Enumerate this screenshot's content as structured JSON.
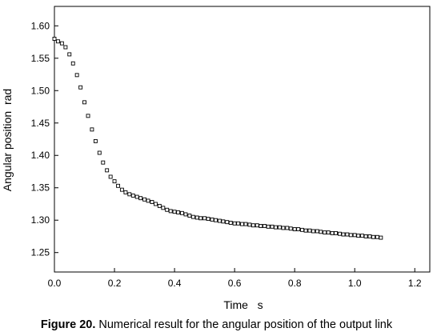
{
  "chart_data": {
    "type": "scatter",
    "title": "",
    "xlabel": "Time   s",
    "ylabel": "Angular position  rad",
    "xlim": [
      0.0,
      1.25
    ],
    "ylim": [
      1.22,
      1.63
    ],
    "xticks": [
      "0.0",
      "0.2",
      "0.4",
      "0.6",
      "0.8",
      "1.0",
      "1.2"
    ],
    "xtick_values": [
      0.0,
      0.2,
      0.4,
      0.6,
      0.8,
      1.0,
      1.2
    ],
    "yticks": [
      "1.25",
      "1.30",
      "1.35",
      "1.40",
      "1.45",
      "1.50",
      "1.55",
      "1.60"
    ],
    "ytick_values": [
      1.25,
      1.3,
      1.35,
      1.4,
      1.45,
      1.5,
      1.55,
      1.6
    ],
    "grid": false,
    "marker": "open-square",
    "series": [
      {
        "points": [
          [
            0.0,
            1.58
          ],
          [
            0.012,
            1.576
          ],
          [
            0.025,
            1.573
          ],
          [
            0.037,
            1.567
          ],
          [
            0.05,
            1.556
          ],
          [
            0.062,
            1.542
          ],
          [
            0.075,
            1.524
          ],
          [
            0.087,
            1.505
          ],
          [
            0.1,
            1.482
          ],
          [
            0.112,
            1.461
          ],
          [
            0.125,
            1.44
          ],
          [
            0.137,
            1.422
          ],
          [
            0.15,
            1.404
          ],
          [
            0.162,
            1.389
          ],
          [
            0.175,
            1.377
          ],
          [
            0.187,
            1.367
          ],
          [
            0.2,
            1.36
          ],
          [
            0.212,
            1.353
          ],
          [
            0.225,
            1.347
          ],
          [
            0.237,
            1.343
          ],
          [
            0.25,
            1.34
          ],
          [
            0.262,
            1.338
          ],
          [
            0.275,
            1.336
          ],
          [
            0.287,
            1.334
          ],
          [
            0.3,
            1.332
          ],
          [
            0.312,
            1.33
          ],
          [
            0.325,
            1.328
          ],
          [
            0.337,
            1.325
          ],
          [
            0.35,
            1.322
          ],
          [
            0.362,
            1.319
          ],
          [
            0.375,
            1.316
          ],
          [
            0.387,
            1.314
          ],
          [
            0.4,
            1.313
          ],
          [
            0.412,
            1.312
          ],
          [
            0.425,
            1.311
          ],
          [
            0.437,
            1.309
          ],
          [
            0.45,
            1.307
          ],
          [
            0.462,
            1.305
          ],
          [
            0.475,
            1.304
          ],
          [
            0.487,
            1.303
          ],
          [
            0.5,
            1.303
          ],
          [
            0.512,
            1.302
          ],
          [
            0.525,
            1.301
          ],
          [
            0.537,
            1.3
          ],
          [
            0.55,
            1.299
          ],
          [
            0.562,
            1.298
          ],
          [
            0.575,
            1.297
          ],
          [
            0.587,
            1.296
          ],
          [
            0.6,
            1.295
          ],
          [
            0.612,
            1.295
          ],
          [
            0.625,
            1.294
          ],
          [
            0.637,
            1.294
          ],
          [
            0.65,
            1.293
          ],
          [
            0.662,
            1.292
          ],
          [
            0.675,
            1.292
          ],
          [
            0.687,
            1.291
          ],
          [
            0.7,
            1.291
          ],
          [
            0.712,
            1.29
          ],
          [
            0.725,
            1.29
          ],
          [
            0.737,
            1.289
          ],
          [
            0.75,
            1.289
          ],
          [
            0.762,
            1.288
          ],
          [
            0.775,
            1.288
          ],
          [
            0.787,
            1.287
          ],
          [
            0.8,
            1.286
          ],
          [
            0.812,
            1.286
          ],
          [
            0.825,
            1.285
          ],
          [
            0.837,
            1.284
          ],
          [
            0.85,
            1.284
          ],
          [
            0.862,
            1.283
          ],
          [
            0.875,
            1.283
          ],
          [
            0.887,
            1.282
          ],
          [
            0.9,
            1.281
          ],
          [
            0.912,
            1.281
          ],
          [
            0.925,
            1.28
          ],
          [
            0.937,
            1.28
          ],
          [
            0.95,
            1.279
          ],
          [
            0.962,
            1.278
          ],
          [
            0.975,
            1.278
          ],
          [
            0.987,
            1.277
          ],
          [
            1.0,
            1.277
          ],
          [
            1.012,
            1.276
          ],
          [
            1.025,
            1.276
          ],
          [
            1.037,
            1.275
          ],
          [
            1.05,
            1.275
          ],
          [
            1.062,
            1.274
          ],
          [
            1.075,
            1.274
          ],
          [
            1.087,
            1.273
          ]
        ]
      }
    ]
  },
  "caption": {
    "label": "Figure 20.",
    "text": " Numerical result for the angular position of the output link"
  }
}
